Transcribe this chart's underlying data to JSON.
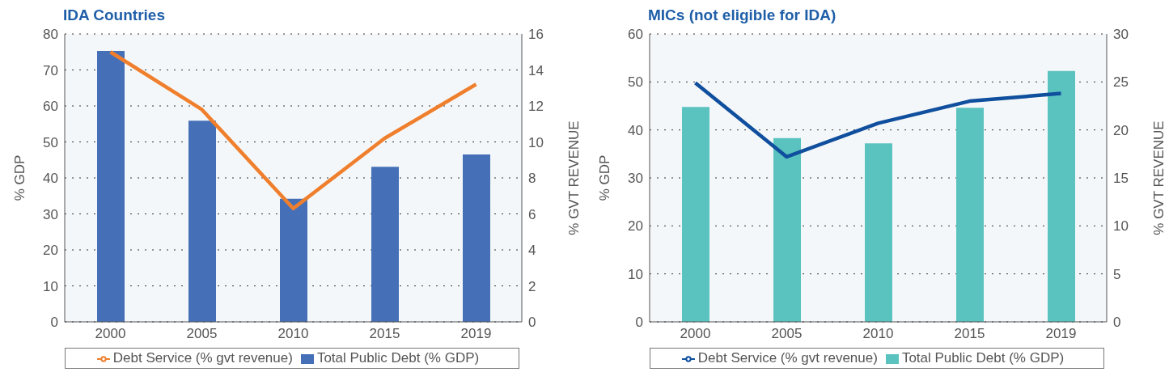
{
  "chart_data": [
    {
      "type": "bar",
      "title": "IDA Countries",
      "categories": [
        "2000",
        "2005",
        "2010",
        "2015",
        "2019"
      ],
      "series": [
        {
          "name": "Total Public Debt (% GDP)",
          "color": "#4570b8",
          "values": [
            75.3,
            55.9,
            34.2,
            43.1,
            46.5
          ]
        },
        {
          "name": "Debt Service (% gvt revenue)",
          "type": "line",
          "axis": "y2",
          "color": "#f07f2d",
          "values": [
            15.0,
            11.8,
            6.3,
            10.2,
            13.2
          ]
        }
      ],
      "ylabel": "% GDP",
      "y2label": "% GVT REVENUE",
      "ylim": [
        0,
        80
      ],
      "yticks": [
        0,
        10,
        20,
        30,
        40,
        50,
        60,
        70,
        80
      ],
      "y2lim": [
        0,
        16
      ],
      "y2ticks": [
        0,
        2,
        4,
        6,
        8,
        10,
        12,
        14,
        16
      ],
      "grid": "y",
      "legend": "bottom"
    },
    {
      "type": "bar",
      "title": "MICs (not eligible for IDA)",
      "categories": [
        "2000",
        "2005",
        "2010",
        "2015",
        "2019"
      ],
      "series": [
        {
          "name": "Total Public Debt (% GDP)",
          "color": "#5bc3bf",
          "values": [
            44.8,
            38.3,
            37.2,
            44.6,
            52.3
          ]
        },
        {
          "name": "Debt Service (% gvt revenue)",
          "type": "line",
          "axis": "y2",
          "color": "#0f4f9e",
          "values": [
            24.9,
            17.2,
            20.7,
            23.0,
            23.8
          ]
        }
      ],
      "ylabel": "% GDP",
      "y2label": "% GVT REVENUE",
      "ylim": [
        0,
        60
      ],
      "yticks": [
        0,
        10,
        20,
        30,
        40,
        50,
        60
      ],
      "y2lim": [
        0,
        30
      ],
      "y2ticks": [
        0,
        5,
        10,
        15,
        20,
        25,
        30
      ],
      "grid": "y",
      "legend": "bottom"
    }
  ]
}
